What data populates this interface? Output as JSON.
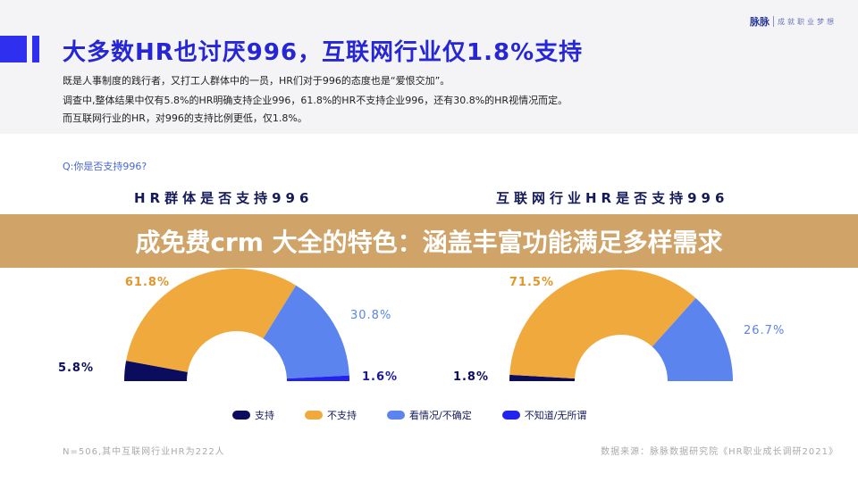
{
  "brand": {
    "logo": "脉脉",
    "tagline": "成就职业梦想"
  },
  "header": {
    "title": "大多数HR也讨厌996，互联网行业仅1.8%支持",
    "lines": [
      "既是人事制度的践行者，又打工人群体中的一员，HR们对于996的态度也是“爱恨交加”。",
      "调查中,整体结果中仅有5.8%的HR明确支持企业996，61.8%的HR不支持企业996，还有30.8%的HR视情况而定。",
      "而互联网行业的HR，对996的支持比例更低，仅1.8%。"
    ]
  },
  "question": "Q:你是否支持996?",
  "banner": "成免费crm 大全的特色：涵盖丰富功能满足多样需求",
  "chart_data": [
    {
      "type": "pie",
      "subtype": "half-donut",
      "title": "HR群体是否支持996",
      "categories": [
        "支持",
        "不支持",
        "看情况/不确定",
        "不知道/无所谓"
      ],
      "values": [
        5.8,
        61.8,
        30.8,
        1.6
      ],
      "labels": [
        "5.8%",
        "61.8%",
        "30.8%",
        "1.6%"
      ]
    },
    {
      "type": "pie",
      "subtype": "half-donut",
      "title": "互联网行业HR是否支持996",
      "categories": [
        "支持",
        "不支持",
        "看情况/不确定",
        "不知道/无所谓"
      ],
      "values": [
        1.8,
        71.5,
        26.7,
        0
      ],
      "labels": [
        "1.8%",
        "71.5%",
        "26.7%"
      ]
    }
  ],
  "legend": [
    {
      "label": "支持",
      "color": "#0b0c5e"
    },
    {
      "label": "不支持",
      "color": "#f0a93c"
    },
    {
      "label": "看情况/不确定",
      "color": "#5b84ee"
    },
    {
      "label": "不知道/无所谓",
      "color": "#2323ee"
    }
  ],
  "footer": {
    "note": "N=506,其中互联网行业HR为222人",
    "source": "数据来源：脉脉数据研究院《HR职业成长调研2021》"
  }
}
